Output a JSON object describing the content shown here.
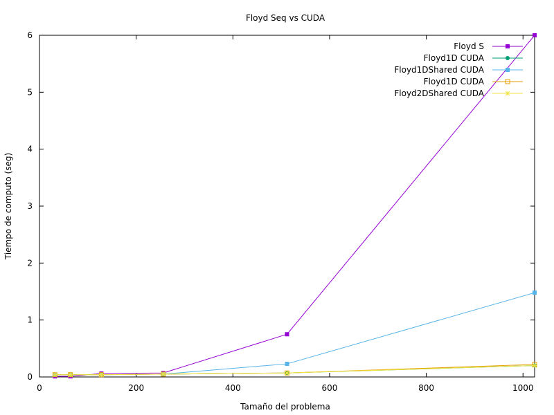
{
  "chart_data": {
    "type": "line",
    "title": "Floyd Seq vs CUDA",
    "xlabel": "Tamaño del problema",
    "ylabel": "Tiempo de computo (seg)",
    "xlim": [
      0,
      1024
    ],
    "ylim": [
      0,
      6
    ],
    "xticks": [
      0,
      200,
      400,
      600,
      800,
      1000
    ],
    "yticks": [
      0,
      1,
      2,
      3,
      4,
      5,
      6
    ],
    "grid": false,
    "legend_position": "top-right",
    "series": [
      {
        "name": "Floyd S",
        "color": "#9400d3",
        "marker": "filled-square",
        "x": [
          32,
          64,
          128,
          256,
          512,
          1024
        ],
        "y": [
          0.01,
          0.01,
          0.06,
          0.07,
          0.75,
          6.0
        ]
      },
      {
        "name": "Floyd1D CUDA",
        "color": "#009e73",
        "marker": "filled-circle",
        "x": [
          32,
          64,
          128,
          256,
          512,
          1024
        ],
        "y": [
          0.04,
          0.04,
          0.04,
          0.05,
          0.07,
          0.2
        ]
      },
      {
        "name": "Floyd1DShared CUDA",
        "color": "#56b4e9",
        "marker": "filled-square",
        "x": [
          32,
          64,
          128,
          256,
          512,
          1024
        ],
        "y": [
          0.04,
          0.04,
          0.04,
          0.05,
          0.23,
          1.48
        ]
      },
      {
        "name": "Floyd1D CUDA",
        "color": "#e69f00",
        "marker": "open-square",
        "x": [
          32,
          64,
          128,
          256,
          512,
          1024
        ],
        "y": [
          0.04,
          0.04,
          0.04,
          0.05,
          0.07,
          0.22
        ]
      },
      {
        "name": "Floyd2DShared CUDA",
        "color": "#f0e442",
        "marker": "star",
        "x": [
          32,
          64,
          128,
          256,
          512,
          1024
        ],
        "y": [
          0.04,
          0.04,
          0.04,
          0.05,
          0.07,
          0.2
        ]
      }
    ]
  }
}
